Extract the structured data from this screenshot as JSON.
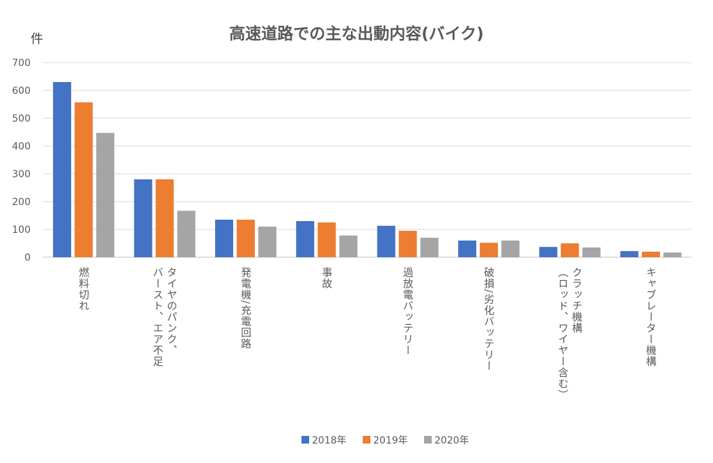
{
  "chart_data": {
    "type": "bar",
    "title": "高速道路での主な出動内容(バイク)",
    "ylabel": "件",
    "xlabel": "",
    "ylim": [
      0,
      700
    ],
    "yticks": [
      0,
      100,
      200,
      300,
      400,
      500,
      600,
      700
    ],
    "grid": true,
    "legend_position": "bottom",
    "categories": [
      "燃料切れ",
      "タイヤのパンク、\nバースト、エア不足",
      "発電機/充電回路",
      "事故",
      "過放電バッテリー",
      "破損/劣化バッテリー",
      "クラッチ機構\n（ロッド、ワイヤー含む）",
      "キャブレーター機構"
    ],
    "series": [
      {
        "name": "2018年",
        "color": "#4472C4",
        "values": [
          630,
          280,
          135,
          130,
          113,
          60,
          37,
          22
        ]
      },
      {
        "name": "2019年",
        "color": "#ED7D31",
        "values": [
          557,
          280,
          135,
          125,
          95,
          52,
          50,
          20
        ]
      },
      {
        "name": "2020年",
        "color": "#A5A5A5",
        "values": [
          447,
          167,
          110,
          78,
          70,
          60,
          35,
          17
        ]
      }
    ]
  }
}
